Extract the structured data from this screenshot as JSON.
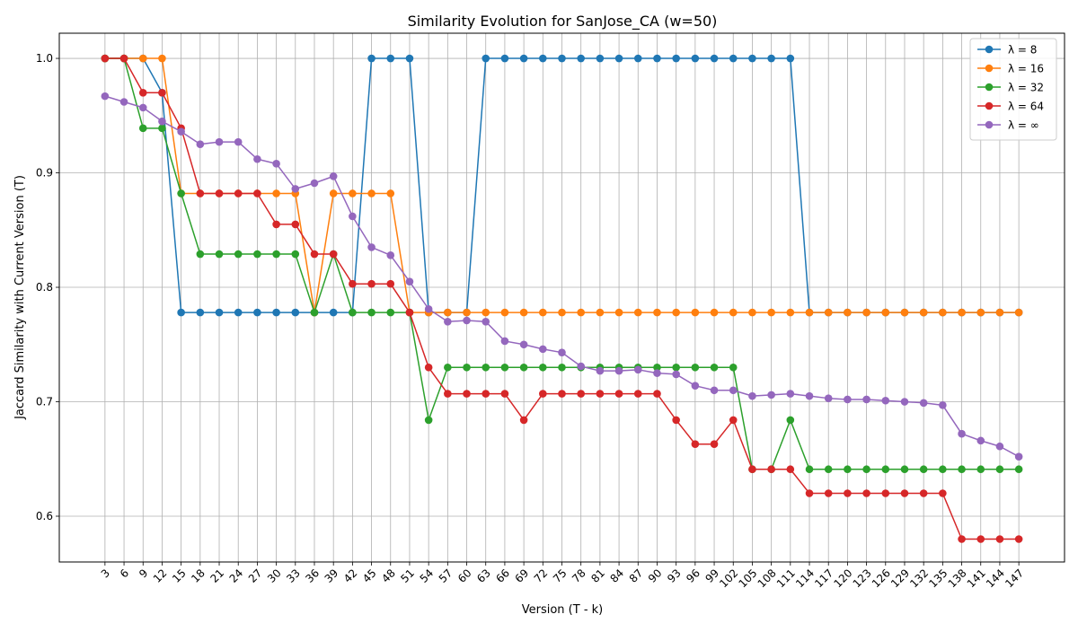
{
  "chart_data": {
    "type": "line",
    "title": "Similarity Evolution for SanJose_CA (w=50)",
    "xlabel": "Version (T - k)",
    "ylabel": "Jaccard Similarity with Current Version (T)",
    "x": [
      3,
      6,
      9,
      12,
      15,
      18,
      21,
      24,
      27,
      30,
      33,
      36,
      39,
      42,
      45,
      48,
      51,
      54,
      57,
      60,
      63,
      66,
      69,
      72,
      75,
      78,
      81,
      84,
      87,
      90,
      93,
      96,
      99,
      102,
      105,
      108,
      111,
      114,
      117,
      120,
      123,
      126,
      129,
      132,
      135,
      138,
      141,
      144,
      147
    ],
    "x_tick_labels": [
      "3",
      "6",
      "9",
      "12",
      "15",
      "18",
      "21",
      "24",
      "27",
      "30",
      "33",
      "36",
      "39",
      "42",
      "45",
      "48",
      "51",
      "54",
      "57",
      "60",
      "63",
      "66",
      "69",
      "72",
      "75",
      "78",
      "81",
      "84",
      "87",
      "90",
      "93",
      "96",
      "99",
      "102",
      "105",
      "108",
      "111",
      "114",
      "117",
      "120",
      "123",
      "126",
      "129",
      "132",
      "135",
      "138",
      "141",
      "144",
      "147"
    ],
    "ylim": [
      0.56,
      1.022
    ],
    "y_ticks": [
      0.6,
      0.7,
      0.8,
      0.9,
      1.0
    ],
    "y_tick_labels": [
      "0.6",
      "0.7",
      "0.8",
      "0.9",
      "1.0"
    ],
    "grid": true,
    "legend_position": "top-right",
    "series": [
      {
        "name": "λ = 8",
        "color": "#1f77b4",
        "values": [
          1.0,
          1.0,
          1.0,
          0.97,
          0.778,
          0.778,
          0.778,
          0.778,
          0.778,
          0.778,
          0.778,
          0.778,
          0.778,
          0.778,
          1.0,
          1.0,
          1.0,
          0.778,
          0.778,
          0.778,
          1.0,
          1.0,
          1.0,
          1.0,
          1.0,
          1.0,
          1.0,
          1.0,
          1.0,
          1.0,
          1.0,
          1.0,
          1.0,
          1.0,
          1.0,
          1.0,
          1.0,
          0.778,
          0.778,
          0.778,
          0.778,
          0.778,
          0.778,
          0.778,
          0.778,
          0.778,
          0.778,
          0.778,
          0.778
        ]
      },
      {
        "name": "λ = 16",
        "color": "#ff7f0e",
        "values": [
          1.0,
          1.0,
          1.0,
          1.0,
          0.882,
          0.882,
          0.882,
          0.882,
          0.882,
          0.882,
          0.882,
          0.778,
          0.882,
          0.882,
          0.882,
          0.882,
          0.778,
          0.778,
          0.778,
          0.778,
          0.778,
          0.778,
          0.778,
          0.778,
          0.778,
          0.778,
          0.778,
          0.778,
          0.778,
          0.778,
          0.778,
          0.778,
          0.778,
          0.778,
          0.778,
          0.778,
          0.778,
          0.778,
          0.778,
          0.778,
          0.778,
          0.778,
          0.778,
          0.778,
          0.778,
          0.778,
          0.778,
          0.778,
          0.778
        ]
      },
      {
        "name": "λ = 32",
        "color": "#2ca02c",
        "values": [
          1.0,
          1.0,
          0.939,
          0.939,
          0.882,
          0.829,
          0.829,
          0.829,
          0.829,
          0.829,
          0.829,
          0.778,
          0.829,
          0.778,
          0.778,
          0.778,
          0.778,
          0.684,
          0.73,
          0.73,
          0.73,
          0.73,
          0.73,
          0.73,
          0.73,
          0.73,
          0.73,
          0.73,
          0.73,
          0.73,
          0.73,
          0.73,
          0.73,
          0.73,
          0.641,
          0.641,
          0.684,
          0.641,
          0.641,
          0.641,
          0.641,
          0.641,
          0.641,
          0.641,
          0.641,
          0.641,
          0.641,
          0.641,
          0.641
        ]
      },
      {
        "name": "λ = 64",
        "color": "#d62728",
        "values": [
          1.0,
          1.0,
          0.97,
          0.97,
          0.939,
          0.882,
          0.882,
          0.882,
          0.882,
          0.855,
          0.855,
          0.829,
          0.829,
          0.803,
          0.803,
          0.803,
          0.778,
          0.73,
          0.707,
          0.707,
          0.707,
          0.707,
          0.684,
          0.707,
          0.707,
          0.707,
          0.707,
          0.707,
          0.707,
          0.707,
          0.684,
          0.663,
          0.663,
          0.684,
          0.641,
          0.641,
          0.641,
          0.62,
          0.62,
          0.62,
          0.62,
          0.62,
          0.62,
          0.62,
          0.62,
          0.58,
          0.58,
          0.58,
          0.58
        ]
      },
      {
        "name": "λ = ∞",
        "color": "#9467bd",
        "values": [
          0.967,
          0.962,
          0.957,
          0.945,
          0.936,
          0.925,
          0.927,
          0.927,
          0.912,
          0.908,
          0.886,
          0.891,
          0.897,
          0.862,
          0.835,
          0.828,
          0.805,
          0.781,
          0.77,
          0.771,
          0.77,
          0.753,
          0.75,
          0.746,
          0.743,
          0.731,
          0.727,
          0.727,
          0.728,
          0.725,
          0.724,
          0.714,
          0.71,
          0.71,
          0.705,
          0.706,
          0.707,
          0.705,
          0.703,
          0.702,
          0.702,
          0.701,
          0.7,
          0.699,
          0.697,
          0.672,
          0.666,
          0.661,
          0.652
        ]
      }
    ]
  }
}
